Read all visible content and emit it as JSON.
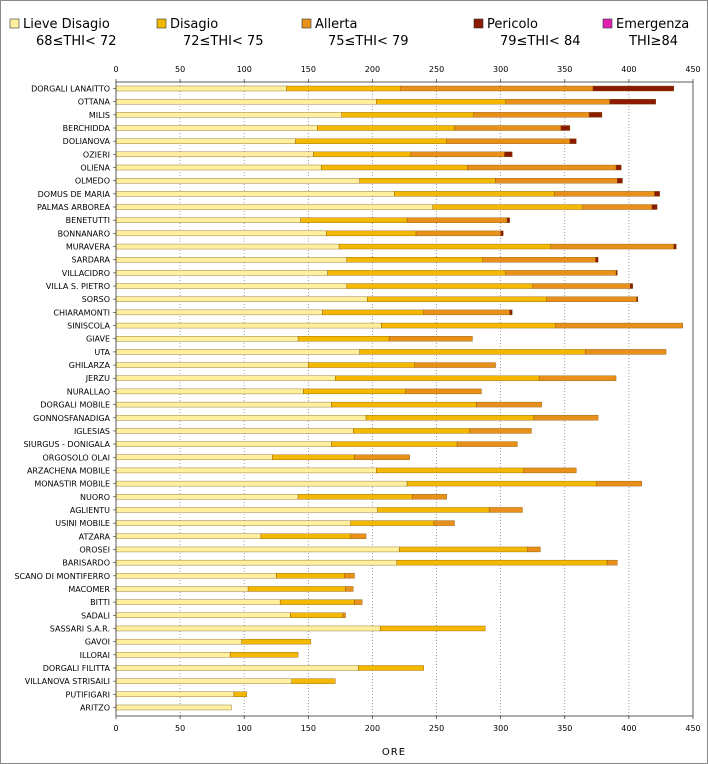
{
  "chart_data": {
    "type": "bar",
    "stacked": true,
    "orientation": "horizontal",
    "xlabel": "ORE",
    "ylabel": "",
    "xlim": [
      0,
      450
    ],
    "x_ticks": [
      0,
      50,
      100,
      150,
      200,
      250,
      300,
      350,
      400,
      450
    ],
    "grid": "vertical-dotted",
    "legend_position": "top",
    "series": [
      {
        "name": "Lieve Disagio",
        "range": "68≤THI< 72",
        "color": "#FFF0A0"
      },
      {
        "name": "Disagio",
        "range": "72≤THI< 75",
        "color": "#F5B800"
      },
      {
        "name": "Allerta",
        "range": "75≤THI< 79",
        "color": "#E8901A"
      },
      {
        "name": "Pericolo",
        "range": "79≤THI< 84",
        "color": "#8B1A00"
      },
      {
        "name": "Emergenza",
        "range": "THI≥84",
        "color": "#E020B0"
      }
    ],
    "categories": [
      "DORGALI LANAITTO",
      "OTTANA",
      "MILIS",
      "BERCHIDDA",
      "DOLIANOVA",
      "OZIERI",
      "OLIENA",
      "OLMEDO",
      "DOMUS DE MARIA",
      "PALMAS ARBOREA",
      "BENETUTTI",
      "BONNANARO",
      "MURAVERA",
      "SARDARA",
      "VILLACIDRO",
      "VILLA S. PIETRO",
      "SORSO",
      "CHIARAMONTI",
      "SINISCOLA",
      "GIAVE",
      "UTA",
      "GHILARZA",
      "JERZU",
      "NURALLAO",
      "DORGALI MOBILE",
      "GONNOSFANADIGA",
      "IGLESIAS",
      "SIURGUS - DONIGALA",
      "ORGOSOLO OLAI",
      "ARZACHENA MOBILE",
      "MONASTIR MOBILE",
      "NUORO",
      "AGLIENTU",
      "USINI MOBILE",
      "ATZARA",
      "OROSEI",
      "BARISARDO",
      "SCANO DI MONTIFERRO",
      "MACOMER",
      "BITTI",
      "SADALI",
      "SASSARI S.A.R.",
      "GAVOI",
      "ILLORAI",
      "DORGALI FILITTA",
      "VILLANOVA STRISAILI",
      "PUTIFIGARI",
      "ARITZO"
    ],
    "values": [
      [
        133,
        89,
        150,
        63,
        0
      ],
      [
        203,
        101,
        81,
        36,
        0
      ],
      [
        176,
        103,
        90,
        10,
        0
      ],
      [
        157,
        107,
        83,
        7,
        0
      ],
      [
        140,
        118,
        96,
        5,
        0
      ],
      [
        154,
        76,
        73,
        6,
        0
      ],
      [
        160,
        114,
        116,
        4,
        0
      ],
      [
        190,
        106,
        95,
        4,
        0
      ],
      [
        217,
        125,
        78,
        4,
        0
      ],
      [
        247,
        117,
        54,
        4,
        0
      ],
      [
        144,
        83,
        78,
        2,
        0
      ],
      [
        164,
        70,
        66,
        2,
        0
      ],
      [
        174,
        165,
        96,
        2,
        0
      ],
      [
        180,
        106,
        88,
        2,
        0
      ],
      [
        165,
        139,
        86,
        1,
        0
      ],
      [
        180,
        145,
        76,
        2,
        0
      ],
      [
        196,
        140,
        70,
        1,
        0
      ],
      [
        161,
        79,
        67,
        2,
        0
      ],
      [
        207,
        136,
        99,
        0,
        0
      ],
      [
        142,
        71,
        65,
        0,
        0
      ],
      [
        190,
        176,
        63,
        0,
        0
      ],
      [
        150,
        83,
        63,
        0,
        0
      ],
      [
        171,
        159,
        60,
        0,
        0
      ],
      [
        146,
        80,
        59,
        0,
        0
      ],
      [
        168,
        113,
        51,
        0,
        0
      ],
      [
        195,
        131,
        50,
        0,
        0
      ],
      [
        185,
        91,
        48,
        0,
        0
      ],
      [
        168,
        98,
        47,
        0,
        0
      ],
      [
        122,
        64,
        43,
        0,
        0
      ],
      [
        203,
        115,
        41,
        0,
        0
      ],
      [
        227,
        148,
        35,
        0,
        0
      ],
      [
        142,
        89,
        27,
        0,
        0
      ],
      [
        204,
        87,
        26,
        0,
        0
      ],
      [
        183,
        65,
        16,
        0,
        0
      ],
      [
        113,
        70,
        12,
        0,
        0
      ],
      [
        221,
        100,
        10,
        0,
        0
      ],
      [
        219,
        164,
        8,
        0,
        0
      ],
      [
        125,
        53,
        8,
        0,
        0
      ],
      [
        103,
        76,
        6,
        0,
        0
      ],
      [
        128,
        58,
        6,
        0,
        0
      ],
      [
        136,
        41,
        2,
        0,
        0
      ],
      [
        206,
        82,
        0,
        0,
        0
      ],
      [
        98,
        54,
        0,
        0,
        0
      ],
      [
        89,
        53,
        0,
        0,
        0
      ],
      [
        189,
        51,
        0,
        0,
        0
      ],
      [
        137,
        34,
        0,
        0,
        0
      ],
      [
        92,
        10,
        0,
        0,
        0
      ],
      [
        90,
        0,
        0,
        0,
        0
      ]
    ]
  }
}
